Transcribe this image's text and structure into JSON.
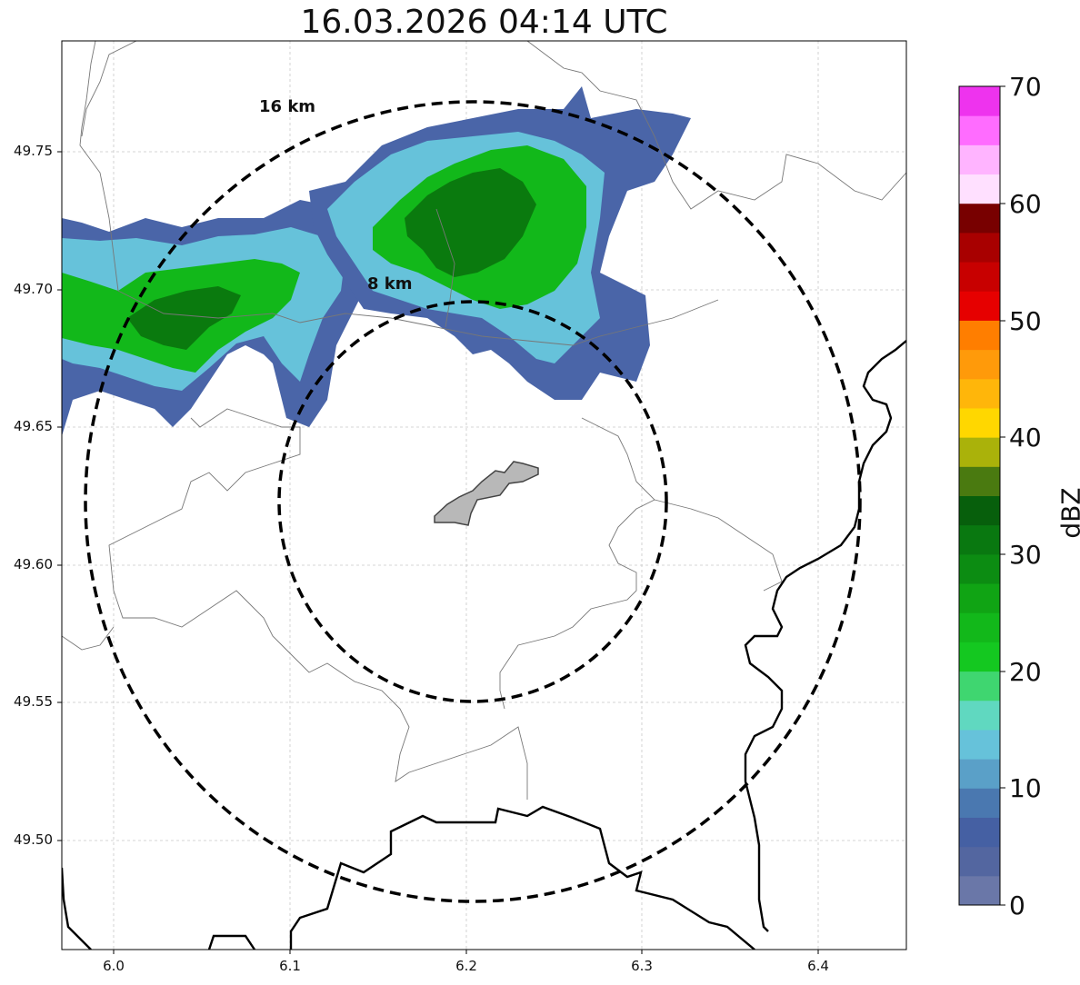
{
  "title": "16.03.2026 04:14 UTC",
  "x_ticks": [
    "6.0",
    "6.1",
    "6.2",
    "6.3",
    "6.4"
  ],
  "y_ticks": [
    "49.75",
    "49.70",
    "49.65",
    "49.60",
    "49.55",
    "49.50"
  ],
  "range_rings": [
    {
      "label": "8 km",
      "radius_km": 8
    },
    {
      "label": "16 km",
      "radius_km": 16
    }
  ],
  "colorbar": {
    "label": "dBZ",
    "min": 0,
    "max": 70,
    "ticks": [
      "0",
      "10",
      "20",
      "30",
      "40",
      "50",
      "60",
      "70"
    ],
    "colors": [
      "#6a77a8",
      "#5366a0",
      "#4560a3",
      "#4a78b0",
      "#5aa0c8",
      "#66c2da",
      "#60d8c0",
      "#3fd670",
      "#14c820",
      "#12b81a",
      "#10a414",
      "#0c8c12",
      "#097810",
      "#075f0c",
      "#4a7a10",
      "#aab20a",
      "#ffd700",
      "#ffb60a",
      "#ff9a0a",
      "#ff7e00",
      "#e60000",
      "#c80000",
      "#a80000",
      "#780000",
      "#ffe0ff",
      "#ffb4ff",
      "#ff6cff",
      "#ee33ee"
    ]
  },
  "colors": {
    "radar_weak": "#4a65a8",
    "radar_light": "#66c2da",
    "radar_moderate": "#12b81a",
    "radar_strong": "#0a7a0e",
    "city_fill": "#b8b8b8",
    "ring_color": "#000000"
  }
}
